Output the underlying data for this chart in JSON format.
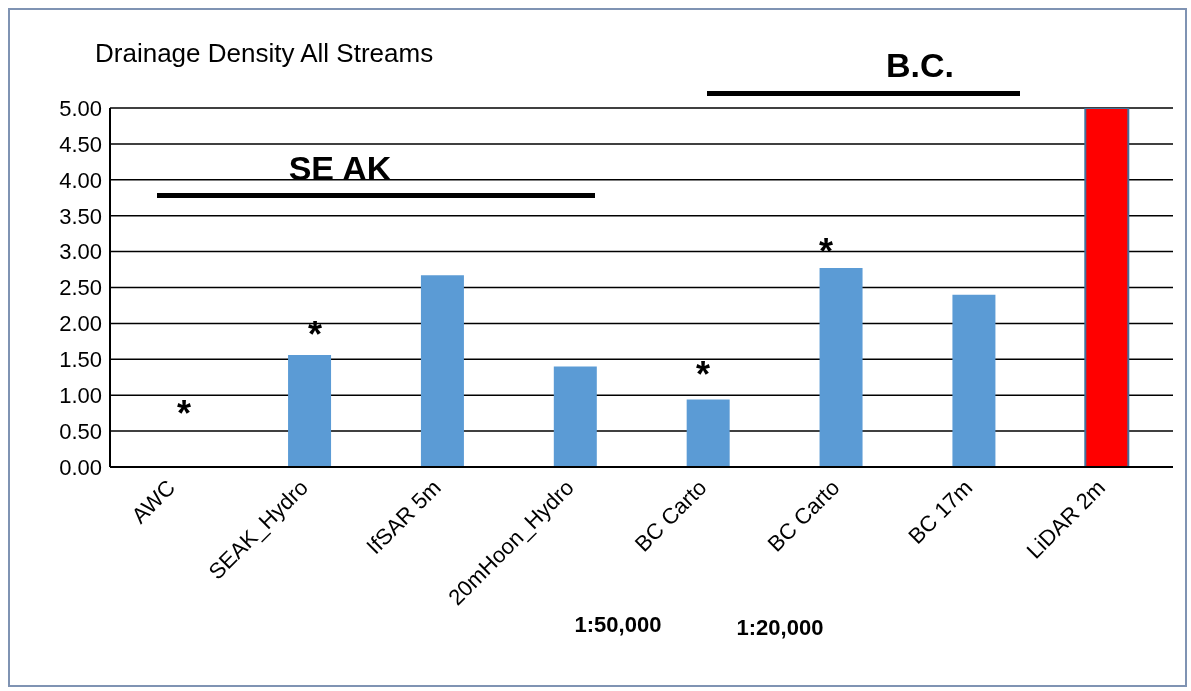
{
  "chart_data": {
    "type": "bar",
    "title": "Drainage Density All Streams",
    "categories": [
      "AWC",
      "SEAK_Hydro",
      "IfSAR 5m",
      "20mHoon_Hydro",
      "BC Carto",
      "BC Carto",
      "BC 17m",
      "LiDAR 2m"
    ],
    "values": [
      0,
      1.56,
      2.67,
      1.4,
      0.94,
      2.77,
      2.4,
      5.0
    ],
    "colors": [
      "#5b9bd5",
      "#5b9bd5",
      "#5b9bd5",
      "#5b9bd5",
      "#5b9bd5",
      "#5b9bd5",
      "#5b9bd5",
      "#ff0000"
    ],
    "ylim": [
      0,
      5
    ],
    "yticks": [
      {
        "value": 0,
        "label": "0.00"
      },
      {
        "value": 0.5,
        "label": "0.50"
      },
      {
        "value": 1,
        "label": "1.00"
      },
      {
        "value": 1.5,
        "label": "1.50"
      },
      {
        "value": 2,
        "label": "2.00"
      },
      {
        "value": 2.5,
        "label": "2.50"
      },
      {
        "value": 3,
        "label": "3.00"
      },
      {
        "value": 3.5,
        "label": "3.50"
      },
      {
        "value": 4,
        "label": "4.00"
      },
      {
        "value": 4.5,
        "label": "4.50"
      },
      {
        "value": 5,
        "label": "5.00"
      }
    ],
    "grid": "y",
    "annotations": [
      "*",
      "*",
      "*",
      "*",
      "SE AK",
      "B.C.",
      "1:50,000",
      "1:20,000"
    ]
  }
}
